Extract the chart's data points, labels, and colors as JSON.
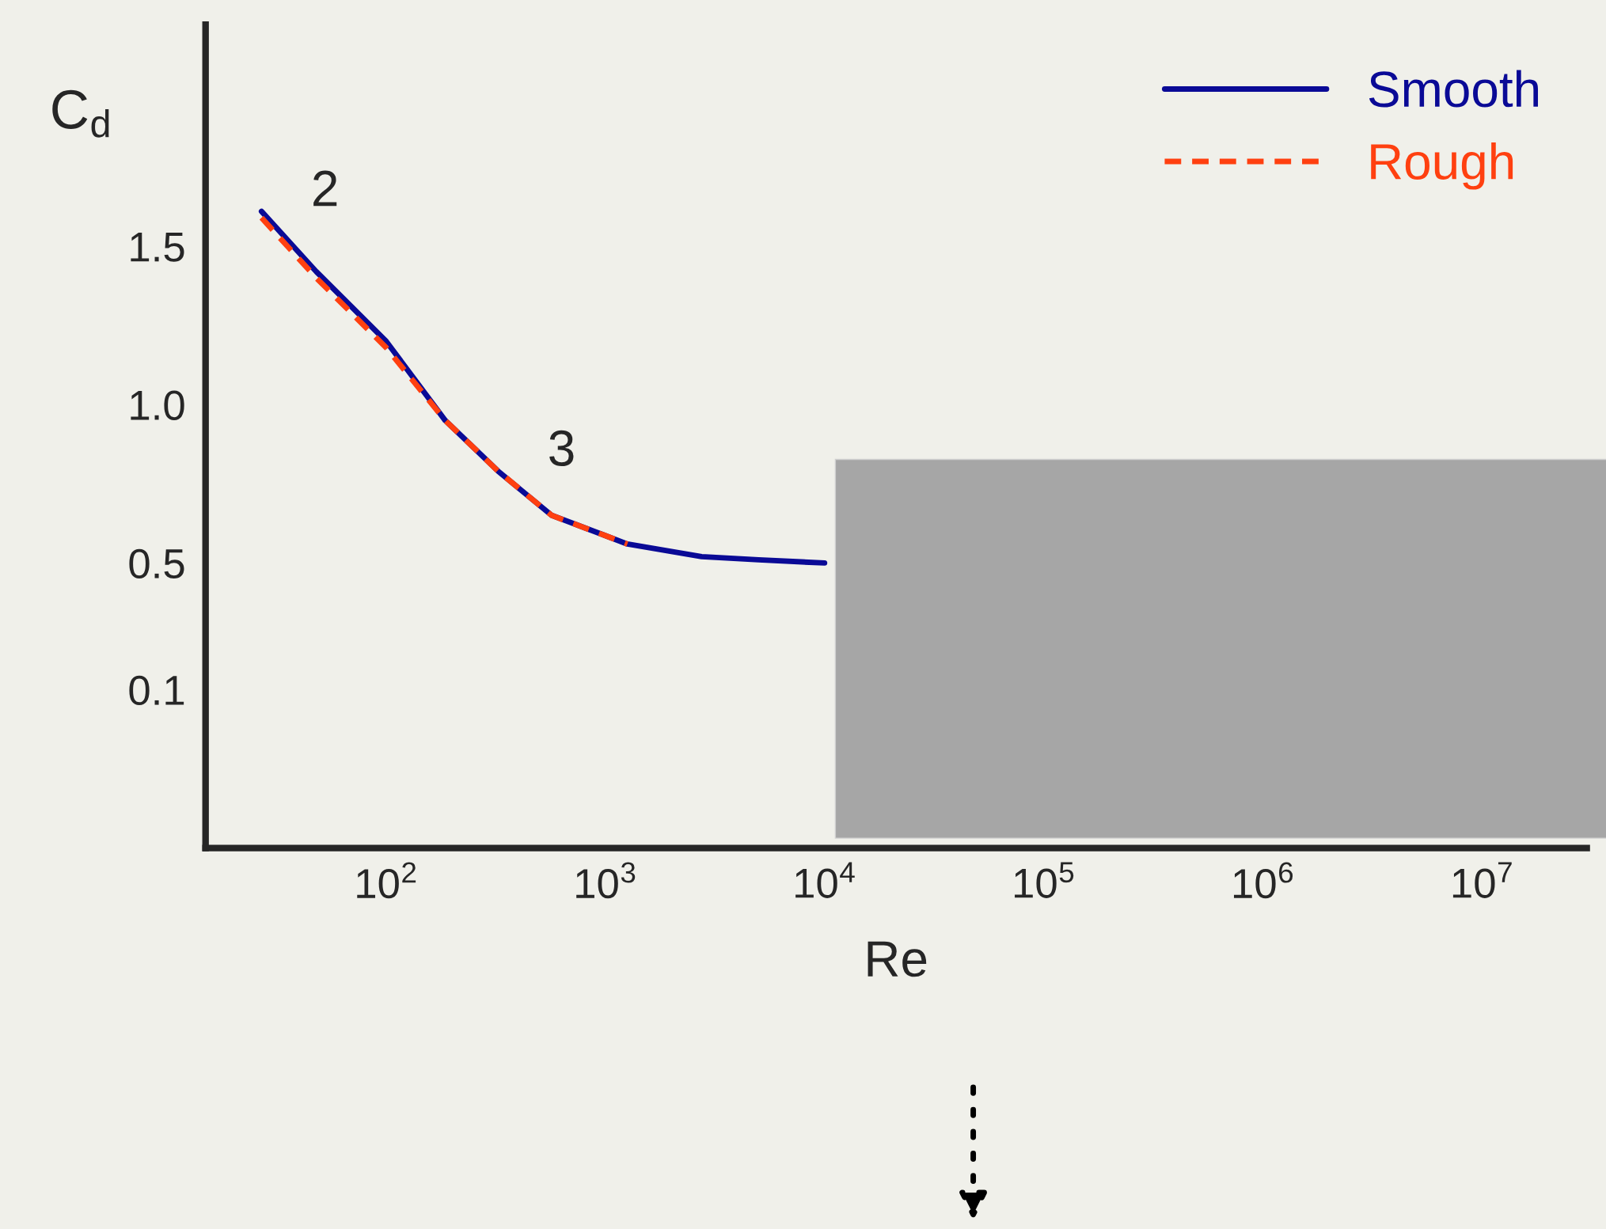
{
  "chart_data": {
    "type": "line",
    "xlabel": "Re",
    "ylabel": "C$_{d}$",
    "log": "x",
    "xlim": [
      15,
      30000000
    ],
    "ylim": [
      -0.4,
      2.2
    ],
    "xticks": [
      {
        "value": 100,
        "label": "10$^{2}$"
      },
      {
        "value": 1000,
        "label": "10$^{3}$"
      },
      {
        "value": 10000,
        "label": "10$^{4}$"
      },
      {
        "value": 100000,
        "label": "10$^{5}$"
      },
      {
        "value": 1000000,
        "label": "10$^{6}$"
      },
      {
        "value": 10000000,
        "label": "10$^{7}$"
      }
    ],
    "yticks": [
      {
        "value": 0.1,
        "label": "0.1"
      },
      {
        "value": 0.5,
        "label": "0.5"
      },
      {
        "value": 1.0,
        "label": "1.0"
      },
      {
        "value": 1.5,
        "label": "1.5"
      }
    ],
    "grid": false,
    "legend": "top right",
    "marker": "none",
    "series": [
      {
        "name": "Smooth",
        "color": "#0a0a96",
        "line_style": "solid",
        "x": [
          27,
          48,
          100,
          186,
          324,
          570,
          1260,
          2750,
          5000,
          10000
        ],
        "values": [
          1.61,
          1.42,
          1.2,
          0.95,
          0.79,
          0.65,
          0.56,
          0.52,
          0.51,
          0.5
        ]
      },
      {
        "name": "Rough",
        "color": "#ff4010",
        "line_style": "dashed",
        "x": [
          27,
          48,
          100,
          186,
          324,
          570,
          1260
        ],
        "values": [
          1.59,
          1.4,
          1.18,
          0.95,
          0.79,
          0.65,
          0.56
        ]
      }
    ],
    "annotations": [
      {
        "text": "2",
        "x": 27,
        "y": 1.61
      },
      {
        "text": "3",
        "x": 324,
        "y": 0.79
      }
    ]
  }
}
